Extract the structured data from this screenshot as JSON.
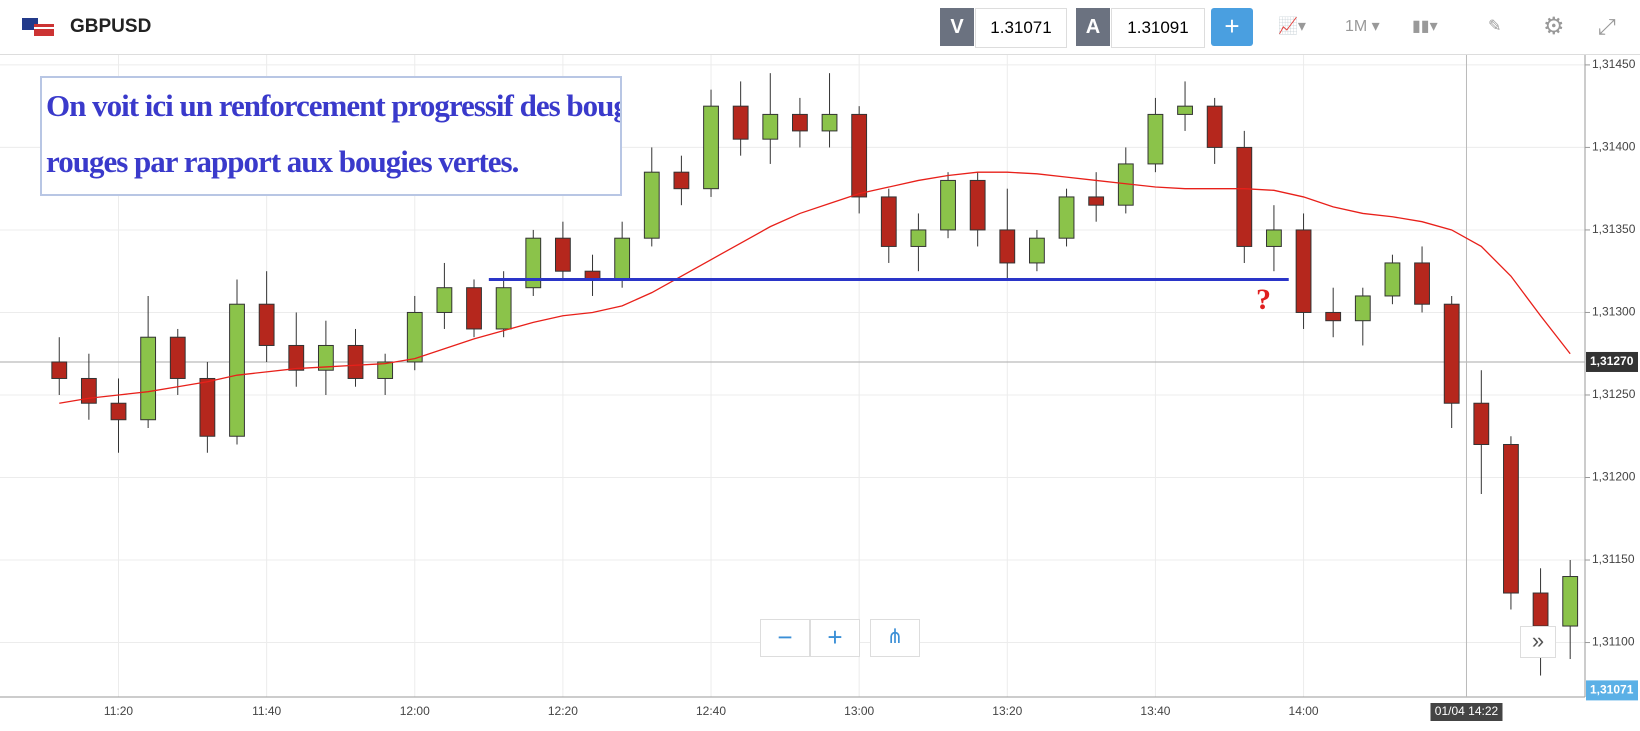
{
  "header": {
    "symbol": "GBPUSD",
    "bid_label": "V",
    "bid": "1.31071",
    "ask_label": "A",
    "ask": "1.31091",
    "timeframe": "1M"
  },
  "annotation": {
    "lines": [
      "On voit ici un renforcement progressif des bougies",
      "rouges par rapport aux bougies vertes."
    ],
    "question": "?"
  },
  "chart_data": {
    "type": "candlestick",
    "x": [
      "11:12",
      "11:16",
      "11:20",
      "11:24",
      "11:28",
      "11:32",
      "11:36",
      "11:40",
      "11:44",
      "11:48",
      "11:52",
      "11:56",
      "12:00",
      "12:04",
      "12:08",
      "12:12",
      "12:16",
      "12:20",
      "12:24",
      "12:28",
      "12:32",
      "12:36",
      "12:40",
      "12:44",
      "12:48",
      "12:52",
      "12:56",
      "13:00",
      "13:04",
      "13:08",
      "13:12",
      "13:16",
      "13:20",
      "13:24",
      "13:28",
      "13:32",
      "13:36",
      "13:40",
      "13:44",
      "13:48",
      "13:52",
      "13:56",
      "14:00",
      "14:04",
      "14:08",
      "14:12",
      "14:16",
      "14:20",
      "14:24",
      "14:28",
      "14:32",
      "14:36"
    ],
    "open": [
      1.3127,
      1.3126,
      1.31245,
      1.31235,
      1.31285,
      1.3126,
      1.31225,
      1.31305,
      1.3128,
      1.31265,
      1.3128,
      1.3126,
      1.3127,
      1.313,
      1.31315,
      1.3129,
      1.31315,
      1.31345,
      1.31325,
      1.3132,
      1.31345,
      1.31385,
      1.31375,
      1.31425,
      1.31405,
      1.3142,
      1.3141,
      1.3142,
      1.3137,
      1.3134,
      1.3135,
      1.3138,
      1.3135,
      1.3133,
      1.31345,
      1.3137,
      1.31365,
      1.3139,
      1.3142,
      1.31425,
      1.314,
      1.3134,
      1.3135,
      1.313,
      1.31295,
      1.3131,
      1.3133,
      1.31305,
      1.31245,
      1.3122,
      1.3113,
      1.3111
    ],
    "high": [
      1.31285,
      1.31275,
      1.3126,
      1.3131,
      1.3129,
      1.3127,
      1.3132,
      1.31325,
      1.313,
      1.31295,
      1.3129,
      1.31275,
      1.3131,
      1.3133,
      1.3132,
      1.31325,
      1.3135,
      1.31355,
      1.31335,
      1.31355,
      1.314,
      1.31395,
      1.31435,
      1.3144,
      1.31445,
      1.3143,
      1.31445,
      1.31425,
      1.31375,
      1.3136,
      1.31385,
      1.31385,
      1.31375,
      1.3135,
      1.31375,
      1.31385,
      1.314,
      1.3143,
      1.3144,
      1.3143,
      1.3141,
      1.31365,
      1.3136,
      1.31315,
      1.31315,
      1.31335,
      1.3134,
      1.3131,
      1.31265,
      1.31225,
      1.31145,
      1.3115
    ],
    "low": [
      1.3125,
      1.31235,
      1.31215,
      1.3123,
      1.3125,
      1.31215,
      1.3122,
      1.3127,
      1.31255,
      1.3125,
      1.31255,
      1.3125,
      1.31265,
      1.3129,
      1.31285,
      1.31285,
      1.3131,
      1.3132,
      1.3131,
      1.31315,
      1.3134,
      1.31365,
      1.3137,
      1.31395,
      1.3139,
      1.314,
      1.314,
      1.3136,
      1.3133,
      1.31325,
      1.31345,
      1.3134,
      1.3132,
      1.31325,
      1.3134,
      1.31355,
      1.3136,
      1.31385,
      1.3141,
      1.3139,
      1.3133,
      1.31325,
      1.3129,
      1.31285,
      1.3128,
      1.31305,
      1.313,
      1.3123,
      1.3119,
      1.3112,
      1.3108,
      1.3109
    ],
    "close": [
      1.3126,
      1.31245,
      1.31235,
      1.31285,
      1.3126,
      1.31225,
      1.31305,
      1.3128,
      1.31265,
      1.3128,
      1.3126,
      1.3127,
      1.313,
      1.31315,
      1.3129,
      1.31315,
      1.31345,
      1.31325,
      1.3132,
      1.31345,
      1.31385,
      1.31375,
      1.31425,
      1.31405,
      1.3142,
      1.3141,
      1.3142,
      1.3137,
      1.3134,
      1.3135,
      1.3138,
      1.3135,
      1.3133,
      1.31345,
      1.3137,
      1.31365,
      1.3139,
      1.3142,
      1.31425,
      1.314,
      1.3134,
      1.3135,
      1.313,
      1.31295,
      1.3131,
      1.3133,
      1.31305,
      1.31245,
      1.3122,
      1.3113,
      1.3111,
      1.3114
    ],
    "up_color": "#8bc34a",
    "down_color": "#b5271d",
    "moving_average": {
      "color": "#e8201a",
      "values": [
        1.31245,
        1.31248,
        1.3125,
        1.31252,
        1.31255,
        1.31258,
        1.31262,
        1.31264,
        1.31266,
        1.31267,
        1.31268,
        1.31269,
        1.31272,
        1.31278,
        1.31284,
        1.31289,
        1.31294,
        1.31298,
        1.313,
        1.31304,
        1.31312,
        1.31322,
        1.31332,
        1.31342,
        1.31352,
        1.3136,
        1.31366,
        1.31372,
        1.31376,
        1.3138,
        1.31383,
        1.31385,
        1.31385,
        1.31384,
        1.31382,
        1.3138,
        1.31378,
        1.31376,
        1.31375,
        1.31375,
        1.31375,
        1.31374,
        1.3137,
        1.31364,
        1.3136,
        1.31358,
        1.31355,
        1.3135,
        1.3134,
        1.31322,
        1.31298,
        1.31275
      ]
    },
    "support_line": {
      "value": 1.3132,
      "from": "12:10",
      "to": "13:58",
      "color": "#2a35c8"
    },
    "price_line": {
      "value": 1.3127,
      "label": "1,31270"
    },
    "last_price": {
      "value": 1.31071,
      "label": "1,31071"
    },
    "crosshair": "01/04 14:22",
    "xlim": [
      "11:04",
      "14:38"
    ],
    "ylim": [
      1.31067,
      1.31456
    ],
    "xticks": [
      "11:20",
      "11:40",
      "12:00",
      "12:20",
      "12:40",
      "13:00",
      "13:20",
      "13:40",
      "14:00"
    ],
    "yticks": [
      {
        "value": 1.311,
        "label": "1,31100"
      },
      {
        "value": 1.3115,
        "label": "1,31150"
      },
      {
        "value": 1.312,
        "label": "1,31200"
      },
      {
        "value": 1.3125,
        "label": "1,31250"
      },
      {
        "value": 1.313,
        "label": "1,31300"
      },
      {
        "value": 1.3135,
        "label": "1,31350"
      },
      {
        "value": 1.314,
        "label": "1,31400"
      },
      {
        "value": 1.3145,
        "label": "1,31450"
      }
    ],
    "grid": true
  }
}
